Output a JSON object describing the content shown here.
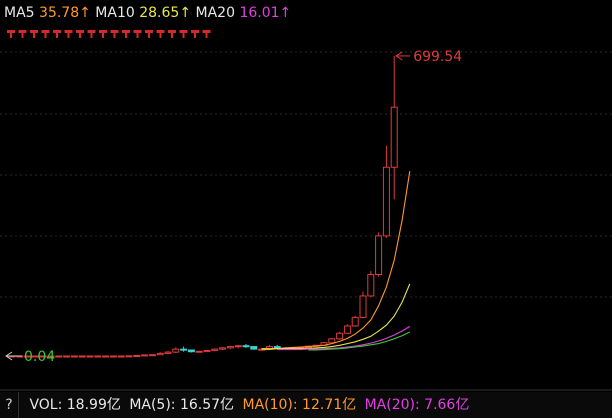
{
  "legend": {
    "ma5_label": "MA5",
    "ma5_value": "35.78↑",
    "ma10_label": "MA10",
    "ma10_value": "28.65↑",
    "ma20_label": "MA20",
    "ma20_value": "16.01↑"
  },
  "volume_bar": {
    "help": "?",
    "vol": "VOL: 18.99亿",
    "ma5": "MA(5): 16.57亿",
    "ma10": "MA(10): 12.71亿",
    "ma20": "MA(20): 7.66亿"
  },
  "colors": {
    "up": "#e03a3a",
    "down": "#3fd0d0",
    "ma5": "#ff9a2e",
    "ma10": "#e9e64a",
    "ma20": "#e040e0",
    "ma30": "#3cc83c",
    "grid": "#2a2a2a"
  },
  "chart_data": {
    "type": "candlestick",
    "ylim": [
      0,
      760
    ],
    "max_label": "699.54",
    "min_label": "0.04",
    "max_value": 699.54,
    "min_value": 0.04,
    "candles": [
      [
        0.04,
        0.04,
        0.04,
        0.04
      ],
      [
        0.04,
        0.04,
        0.04,
        0.04
      ],
      [
        0.04,
        0.04,
        0.04,
        0.04
      ],
      [
        0.04,
        0.04,
        0.04,
        0.04
      ],
      [
        0.04,
        0.04,
        0.04,
        0.04
      ],
      [
        0.04,
        0.04,
        0.04,
        0.04
      ],
      [
        0.04,
        0.04,
        0.04,
        0.04
      ],
      [
        0.04,
        0.04,
        0.04,
        0.04
      ],
      [
        0.04,
        0.04,
        0.04,
        0.04
      ],
      [
        0.04,
        0.04,
        0.04,
        0.04
      ],
      [
        0.04,
        0.04,
        0.04,
        0.04
      ],
      [
        0.04,
        0.04,
        0.04,
        0.04
      ],
      [
        0.04,
        0.04,
        0.04,
        0.04
      ],
      [
        0.04,
        0.04,
        0.04,
        0.04
      ],
      [
        0.04,
        0.04,
        0.04,
        0.04
      ],
      [
        0.04,
        0.5,
        0.04,
        0.4
      ],
      [
        0.4,
        1.5,
        0.3,
        1.2
      ],
      [
        1.2,
        3,
        1,
        2.5
      ],
      [
        2.5,
        3.5,
        1.8,
        3
      ],
      [
        3,
        9,
        2.5,
        6
      ],
      [
        6,
        12,
        4,
        9
      ],
      [
        9,
        20,
        7,
        16
      ],
      [
        16,
        22,
        10,
        14
      ],
      [
        14,
        15,
        8,
        10
      ],
      [
        10,
        12,
        8,
        11
      ],
      [
        11,
        14,
        9,
        13
      ],
      [
        13,
        18,
        11,
        16
      ],
      [
        16,
        21,
        14,
        19
      ],
      [
        19,
        24,
        16,
        22
      ],
      [
        22,
        26,
        18,
        24
      ],
      [
        24,
        28,
        19,
        22
      ],
      [
        22,
        23,
        15,
        16
      ],
      [
        16,
        18,
        13,
        16
      ],
      [
        16,
        26,
        14,
        22
      ],
      [
        22,
        26,
        16,
        18
      ],
      [
        18,
        20,
        14,
        17
      ],
      [
        17,
        21,
        16,
        19
      ],
      [
        19,
        21,
        17,
        20
      ],
      [
        20,
        24,
        19,
        23
      ],
      [
        23,
        26,
        21,
        25
      ],
      [
        25,
        33,
        24,
        31
      ],
      [
        31,
        42,
        29,
        40
      ],
      [
        40,
        56,
        38,
        53
      ],
      [
        53,
        74,
        51,
        70
      ],
      [
        70,
        94,
        68,
        90
      ],
      [
        90,
        150,
        88,
        140
      ],
      [
        140,
        198,
        138,
        190
      ],
      [
        190,
        288,
        185,
        280
      ],
      [
        280,
        490,
        275,
        440
      ],
      [
        440,
        699.54,
        365,
        580
      ]
    ],
    "ma": [
      {
        "name": "MA5",
        "start": 32,
        "values": [
          15,
          15,
          17,
          19,
          20,
          21,
          22,
          23,
          25,
          29,
          34,
          41,
          51,
          65,
          84,
          117,
          161,
          223,
          315,
          431
        ]
      },
      {
        "name": "MA10",
        "start": 32,
        "values": [
          17,
          17,
          17,
          18,
          18,
          18,
          18,
          19,
          20,
          22,
          25,
          29,
          33,
          39,
          46,
          58,
          72,
          93,
          125,
          168
        ]
      },
      {
        "name": "MA20",
        "start": 34,
        "values": [
          15,
          15,
          15,
          15,
          16,
          16,
          17,
          18,
          19,
          21,
          23,
          26,
          30,
          35,
          41,
          49,
          58,
          69
        ]
      },
      {
        "name": "MA30",
        "start": 38,
        "values": [
          14,
          14,
          15,
          16,
          17,
          19,
          21,
          23,
          26,
          29,
          34,
          40,
          47,
          56
        ]
      }
    ]
  }
}
